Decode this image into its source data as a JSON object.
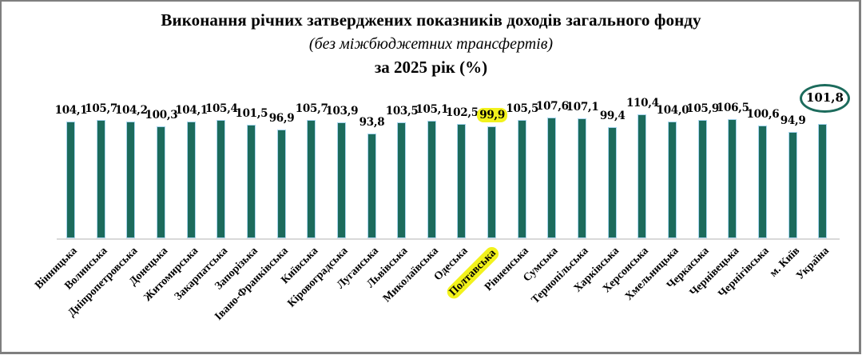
{
  "header": {
    "title": "Виконання річних затверджених показників доходів загального фонду",
    "subtitle": "(без міжбюджетних трансфертів)",
    "period": "за 2025 рік (%)"
  },
  "colors": {
    "bar_fill": "#1c6b5c",
    "bar_border": "#a9d6f0",
    "highlight": "#f2f21c",
    "ellipse": "#1c6b5c"
  },
  "chart_data": {
    "type": "bar",
    "title": "Виконання річних затверджених показників доходів загального фонду (без міжбюджетних трансфертів) за 2025 рік (%)",
    "xlabel": "",
    "ylabel": "",
    "ylim": [
      0,
      120
    ],
    "grid": false,
    "legend": "none",
    "categories": [
      "Вінницька",
      "Волинська",
      "Дніпропетровська",
      "Донецька",
      "Житомирська",
      "Закарпатська",
      "Запорізька",
      "Івано-Франківська",
      "Київська",
      "Кіровоградська",
      "Луганська",
      "Львівська",
      "Миколаївська",
      "Одеська",
      "Полтавська",
      "Рівненська",
      "Сумська",
      "Тернопільська",
      "Харківська",
      "Херсонська",
      "Хмельницька",
      "Черкаська",
      "Чернівецька",
      "Чернігівська",
      "м. Київ",
      "Україна"
    ],
    "values": [
      104.1,
      105.7,
      104.2,
      100.3,
      104.1,
      105.4,
      101.5,
      96.9,
      105.7,
      103.9,
      93.8,
      103.5,
      105.1,
      102.5,
      99.9,
      105.5,
      107.6,
      107.1,
      99.4,
      110.4,
      104.0,
      105.9,
      106.5,
      100.6,
      94.9,
      101.8
    ],
    "labels": [
      "104,1",
      "105,7",
      "104,2",
      "100,3",
      "104,1",
      "105,4",
      "101,5",
      "96,9",
      "105,7",
      "103,9",
      "93,8",
      "103,5",
      "105,1",
      "102,5",
      "99,9",
      "105,5",
      "107,6",
      "107,1",
      "99,4",
      "110,4",
      "104,0",
      "105,9",
      "106,5",
      "100,6",
      "94,9",
      "101,8"
    ],
    "annotations": [
      {
        "category": "Полтавська",
        "type": "highlight",
        "color": "#f2f21c"
      },
      {
        "category": "Україна",
        "type": "ellipse",
        "color": "#1c6b5c"
      }
    ],
    "highlight_index": 14,
    "total_index": 25
  }
}
